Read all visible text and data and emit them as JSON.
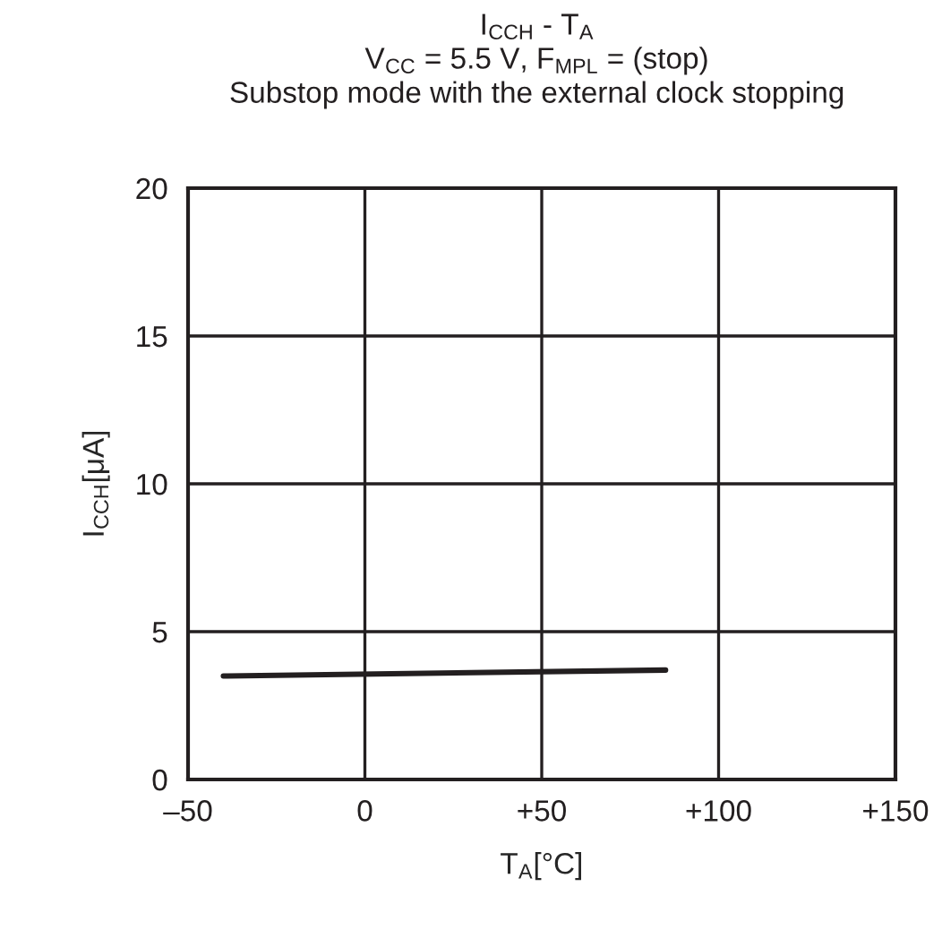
{
  "chart_data": {
    "type": "line",
    "title": "I$_{CCH}$ - T$_{A}$",
    "subtitle": "V$_{CC}$ = 5.5 V, F$_{MPL}$ = (stop)\nSubstop mode with the external clock stopping",
    "xlabel": "T$_{A}$[°C]",
    "ylabel": "I$_{CCH}$[μA]",
    "series": [
      {
        "x": [
          -40,
          85
        ],
        "values": [
          3.5,
          3.7
        ],
        "color": "#231f20"
      }
    ],
    "xlim": [
      -50,
      150
    ],
    "xticks": [
      {
        "value": -50,
        "label": "–50"
      },
      0,
      {
        "value": 50,
        "label": "+50"
      },
      {
        "value": 100,
        "label": "+100"
      },
      {
        "value": 150,
        "label": "+150"
      }
    ],
    "ylim": [
      0,
      20
    ],
    "yticks": [
      0,
      5,
      10,
      15,
      20
    ],
    "grid": true,
    "legend": false,
    "marker": "none",
    "line_style": "solid"
  }
}
